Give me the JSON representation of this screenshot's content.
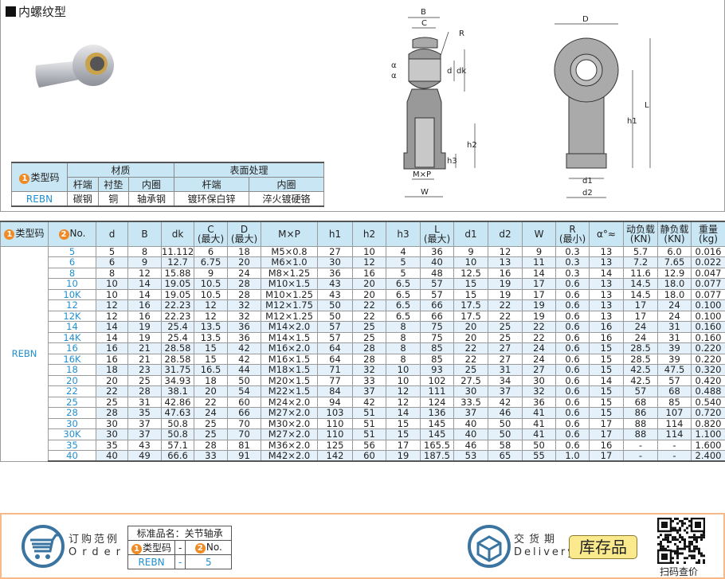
{
  "title": "内螺纹型",
  "material_table": {
    "type_header": "类型码",
    "badge1": "1",
    "group_material": "材质",
    "group_surface": "表面处理",
    "subheaders": [
      "杆端",
      "衬垫",
      "内圈",
      "杆端",
      "内圈"
    ],
    "row": {
      "type": "REBN",
      "values": [
        "碳钢",
        "铜",
        "轴承钢",
        "镀环保白锌",
        "淬火镀硬铬"
      ]
    }
  },
  "drawing": {
    "labels": {
      "B": "B",
      "C": "C",
      "R": "R",
      "a1": "α",
      "a2": "α",
      "d": "d",
      "dk": "dk",
      "h2": "h2",
      "h3": "h3",
      "mxp": "M×P",
      "W": "W",
      "D": "D",
      "h1": "h1",
      "L": "L",
      "d1": "d1",
      "d2": "d2"
    }
  },
  "spec_table": {
    "type_header": "类型码",
    "no_header": "No.",
    "badge1": "1",
    "badge2": "2",
    "columns": [
      "d",
      "B",
      "dk",
      "C\n(最大)",
      "D\n(最大)",
      "M×P",
      "h1",
      "h2",
      "h3",
      "L\n(最大)",
      "d1",
      "d2",
      "W",
      "R\n(最小)",
      "α°≈",
      "动负载\n(KN)",
      "静负载\n(KN)",
      "重量\n(kg)"
    ],
    "type": "REBN",
    "rows": [
      [
        "5",
        "5",
        "8",
        "11.112",
        "6",
        "18",
        "M5×0.8",
        "27",
        "10",
        "4",
        "36",
        "9",
        "12",
        "9",
        "0.3",
        "13",
        "5.7",
        "6.0",
        "0.016"
      ],
      [
        "6",
        "6",
        "9",
        "12.7",
        "6.75",
        "20",
        "M6×1.0",
        "30",
        "12",
        "5",
        "40",
        "10",
        "13",
        "11",
        "0.3",
        "13",
        "7.2",
        "7.65",
        "0.022"
      ],
      [
        "8",
        "8",
        "12",
        "15.88",
        "9",
        "24",
        "M8×1.25",
        "36",
        "16",
        "5",
        "48",
        "12.5",
        "16",
        "14",
        "0.3",
        "14",
        "11.6",
        "12.9",
        "0.047"
      ],
      [
        "10",
        "10",
        "14",
        "19.05",
        "10.5",
        "28",
        "M10×1.5",
        "43",
        "20",
        "6.5",
        "57",
        "15",
        "19",
        "17",
        "0.6",
        "13",
        "14.5",
        "18.0",
        "0.077"
      ],
      [
        "10K",
        "10",
        "14",
        "19.05",
        "10.5",
        "28",
        "M10×1.25",
        "43",
        "20",
        "6.5",
        "57",
        "15",
        "19",
        "17",
        "0.6",
        "13",
        "14.5",
        "18.0",
        "0.077"
      ],
      [
        "12",
        "12",
        "16",
        "22.23",
        "12",
        "32",
        "M12×1.75",
        "50",
        "22",
        "6.5",
        "66",
        "17.5",
        "22",
        "19",
        "0.6",
        "13",
        "17",
        "24",
        "0.100"
      ],
      [
        "12K",
        "12",
        "16",
        "22.23",
        "12",
        "32",
        "M12×1.25",
        "50",
        "22",
        "6.5",
        "66",
        "17.5",
        "22",
        "19",
        "0.6",
        "13",
        "17",
        "24",
        "0.100"
      ],
      [
        "14",
        "14",
        "19",
        "25.4",
        "13.5",
        "36",
        "M14×2.0",
        "57",
        "25",
        "8",
        "75",
        "20",
        "25",
        "22",
        "0.6",
        "16",
        "24",
        "31",
        "0.160"
      ],
      [
        "14K",
        "14",
        "19",
        "25.4",
        "13.5",
        "36",
        "M14×1.5",
        "57",
        "25",
        "8",
        "75",
        "20",
        "25",
        "22",
        "0.6",
        "16",
        "24",
        "31",
        "0.160"
      ],
      [
        "16",
        "16",
        "21",
        "28.58",
        "15",
        "42",
        "M16×2.0",
        "64",
        "28",
        "8",
        "85",
        "22",
        "27",
        "24",
        "0.6",
        "15",
        "28.5",
        "39",
        "0.220"
      ],
      [
        "16K",
        "16",
        "21",
        "28.58",
        "15",
        "42",
        "M16×1.5",
        "64",
        "28",
        "8",
        "85",
        "22",
        "27",
        "24",
        "0.6",
        "15",
        "28.5",
        "39",
        "0.220"
      ],
      [
        "18",
        "18",
        "23",
        "31.75",
        "16.5",
        "44",
        "M18×1.5",
        "71",
        "32",
        "10",
        "93",
        "25",
        "31",
        "27",
        "0.6",
        "15",
        "42.5",
        "47.5",
        "0.320"
      ],
      [
        "20",
        "20",
        "25",
        "34.93",
        "18",
        "50",
        "M20×1.5",
        "77",
        "33",
        "10",
        "102",
        "27.5",
        "34",
        "30",
        "0.6",
        "14",
        "42.5",
        "57",
        "0.420"
      ],
      [
        "22",
        "22",
        "28",
        "38.1",
        "20",
        "54",
        "M22×1.5",
        "84",
        "37",
        "12",
        "111",
        "30",
        "37",
        "32",
        "0.6",
        "15",
        "57",
        "68",
        "0.488"
      ],
      [
        "25",
        "25",
        "31",
        "42.86",
        "22",
        "60",
        "M24×2.0",
        "94",
        "42",
        "12",
        "124",
        "33.5",
        "42",
        "36",
        "0.6",
        "15",
        "68",
        "85",
        "0.540"
      ],
      [
        "28",
        "28",
        "35",
        "47.63",
        "24",
        "66",
        "M27×2.0",
        "103",
        "51",
        "14",
        "136",
        "37",
        "46",
        "41",
        "0.6",
        "15",
        "86",
        "107",
        "0.720"
      ],
      [
        "30",
        "30",
        "37",
        "50.8",
        "25",
        "70",
        "M30×2.0",
        "110",
        "51",
        "15",
        "145",
        "40",
        "50",
        "41",
        "0.6",
        "17",
        "88",
        "114",
        "0.820"
      ],
      [
        "30K",
        "30",
        "37",
        "50.8",
        "25",
        "70",
        "M27×2.0",
        "110",
        "51",
        "15",
        "145",
        "40",
        "50",
        "41",
        "0.6",
        "17",
        "88",
        "114",
        "1.100"
      ],
      [
        "35",
        "35",
        "43",
        "57.1",
        "28",
        "81",
        "M36×2.0",
        "125",
        "56",
        "17",
        "165.5",
        "46",
        "58",
        "50",
        "0.6",
        "16",
        "-",
        "-",
        "1.600"
      ],
      [
        "40",
        "40",
        "49",
        "66.6",
        "33",
        "91",
        "M42×2.0",
        "142",
        "60",
        "19",
        "187.5",
        "53",
        "65",
        "55",
        "1.0",
        "17",
        "-",
        "-",
        "2.400"
      ]
    ]
  },
  "footer": {
    "order_cn": "订购范例",
    "order_en": "Order",
    "std_name": "标准品名：关节轴承",
    "type_header": "类型码",
    "dash": "-",
    "no_header": "No.",
    "example_type": "REBN",
    "example_no": "5",
    "delivery_cn": "交货期",
    "delivery_en": "Delivery",
    "stock": "库存品",
    "qr_caption": "扫码查价"
  },
  "colors": {
    "header_bg": "#c9e6f5",
    "accent_blue": "#1f8fd0",
    "badge": "#f08a24",
    "footer_border": "#f5b98a",
    "stock_bg": "#fbe98d"
  }
}
